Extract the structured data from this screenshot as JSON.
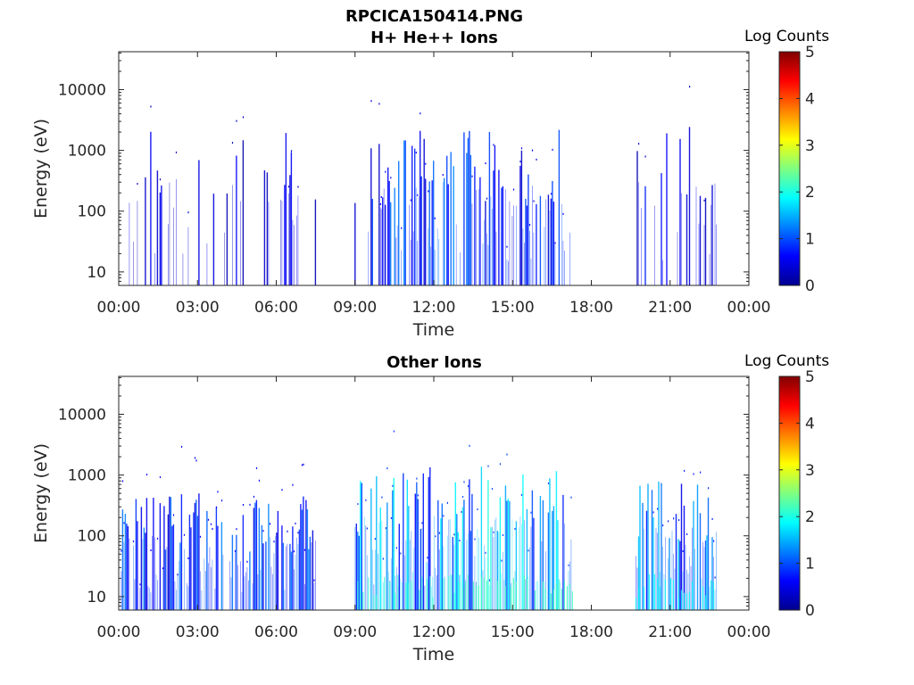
{
  "figure_title": "RPCICA150414.PNG",
  "colorbar": {
    "label": "Log Counts",
    "ticks": [
      "0",
      "1",
      "2",
      "3",
      "4",
      "5"
    ],
    "colormap": "jet"
  },
  "chart_data": [
    {
      "type": "heatmap",
      "title": "H+ He++ Ions",
      "xlabel": "Time",
      "ylabel": "Energy (eV)",
      "x_ticks": [
        "00:00",
        "03:00",
        "06:00",
        "09:00",
        "12:00",
        "15:00",
        "18:00",
        "21:00",
        "00:00"
      ],
      "x_range_hours": [
        0,
        24
      ],
      "y_ticks": [
        "10",
        "100",
        "1000",
        "10000"
      ],
      "y_scale": "log",
      "y_range": [
        6,
        42000
      ],
      "z_label": "Log Counts",
      "z_range": [
        0,
        5
      ],
      "data_intervals_hours": [
        [
          0.1,
          7.5
        ],
        [
          9.0,
          17.3
        ],
        [
          19.7,
          22.8
        ]
      ],
      "bursts": [
        {
          "t_start": 0.1,
          "t_end": 7.5,
          "e_min": 6,
          "e_max": 3000,
          "level": 0.5,
          "density": 0.3
        },
        {
          "t_start": 9.0,
          "t_end": 10.0,
          "e_min": 6,
          "e_max": 3000,
          "level": 0.8,
          "density": 0.5
        },
        {
          "t_start": 10.0,
          "t_end": 13.0,
          "e_min": 6,
          "e_max": 2500,
          "level": 1.0,
          "density": 0.7
        },
        {
          "t_start": 13.0,
          "t_end": 17.3,
          "e_min": 6,
          "e_max": 2200,
          "level": 0.9,
          "density": 0.6
        },
        {
          "t_start": 19.7,
          "t_end": 22.8,
          "e_min": 6,
          "e_max": 3000,
          "level": 0.6,
          "density": 0.35
        }
      ]
    },
    {
      "type": "heatmap",
      "title": "Other Ions",
      "xlabel": "Time",
      "ylabel": "Energy (eV)",
      "x_ticks": [
        "00:00",
        "03:00",
        "06:00",
        "09:00",
        "12:00",
        "15:00",
        "18:00",
        "21:00",
        "00:00"
      ],
      "x_range_hours": [
        0,
        24
      ],
      "y_ticks": [
        "10",
        "100",
        "1000",
        "10000"
      ],
      "y_scale": "log",
      "y_range": [
        6,
        42000
      ],
      "z_label": "Log Counts",
      "z_range": [
        0,
        5
      ],
      "data_intervals_hours": [
        [
          0.1,
          7.5
        ],
        [
          9.0,
          17.3
        ],
        [
          19.7,
          22.8
        ]
      ],
      "bursts": [
        {
          "t_start": 0.1,
          "t_end": 7.5,
          "e_min": 6,
          "e_max": 500,
          "level": 1.0,
          "density": 0.8
        },
        {
          "t_start": 9.0,
          "t_end": 13.0,
          "e_min": 6,
          "e_max": 1500,
          "level": 1.5,
          "density": 0.9
        },
        {
          "t_start": 13.0,
          "t_end": 17.3,
          "e_min": 6,
          "e_max": 1500,
          "level": 1.6,
          "density": 0.9
        },
        {
          "t_start": 19.7,
          "t_end": 22.8,
          "e_min": 6,
          "e_max": 800,
          "level": 1.3,
          "density": 0.85
        }
      ]
    }
  ]
}
